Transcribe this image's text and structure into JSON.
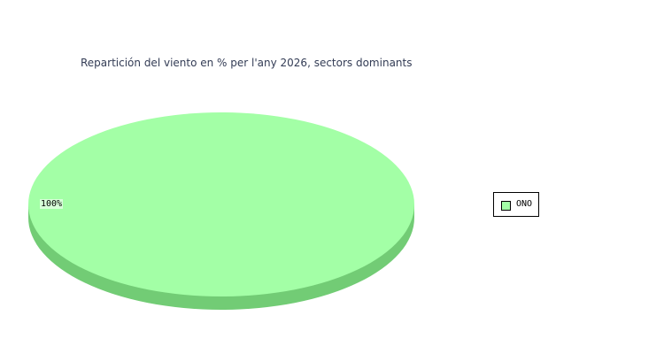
{
  "chart_data": {
    "type": "pie",
    "title": "Repartición del viento en % per l'any 2026, sectors dominants",
    "slices": [
      {
        "label": "ONO",
        "value": 100,
        "data_label": "100%",
        "color": "#a3ffa6",
        "side_color": "#72cc75"
      }
    ],
    "legend_position": "right",
    "three_d": true
  }
}
